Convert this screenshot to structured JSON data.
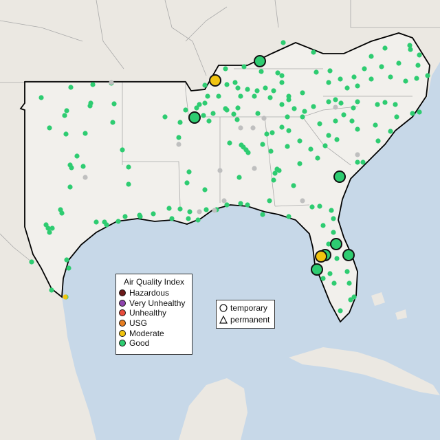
{
  "legend": {
    "title": "Air Quality Index",
    "categories": [
      {
        "label": "Hazardous",
        "color": "#6b1a1a"
      },
      {
        "label": "Very Unhealthy",
        "color": "#8e44ad"
      },
      {
        "label": "Unhealthy",
        "color": "#e74c3c"
      },
      {
        "label": "USG",
        "color": "#e67e22"
      },
      {
        "label": "Moderate",
        "color": "#f1c40f"
      },
      {
        "label": "Good",
        "color": "#2ecc71"
      }
    ]
  },
  "type_legend": {
    "temporary_label": "temporary",
    "permanent_label": "permanent"
  },
  "colors": {
    "ocean": "#c7d8e8",
    "land": "#ebe8e2",
    "region": "#f2f0ec",
    "good": "#2ecc71",
    "moderate": "#f1c40f",
    "inactive": "#bfbfbf"
  }
}
